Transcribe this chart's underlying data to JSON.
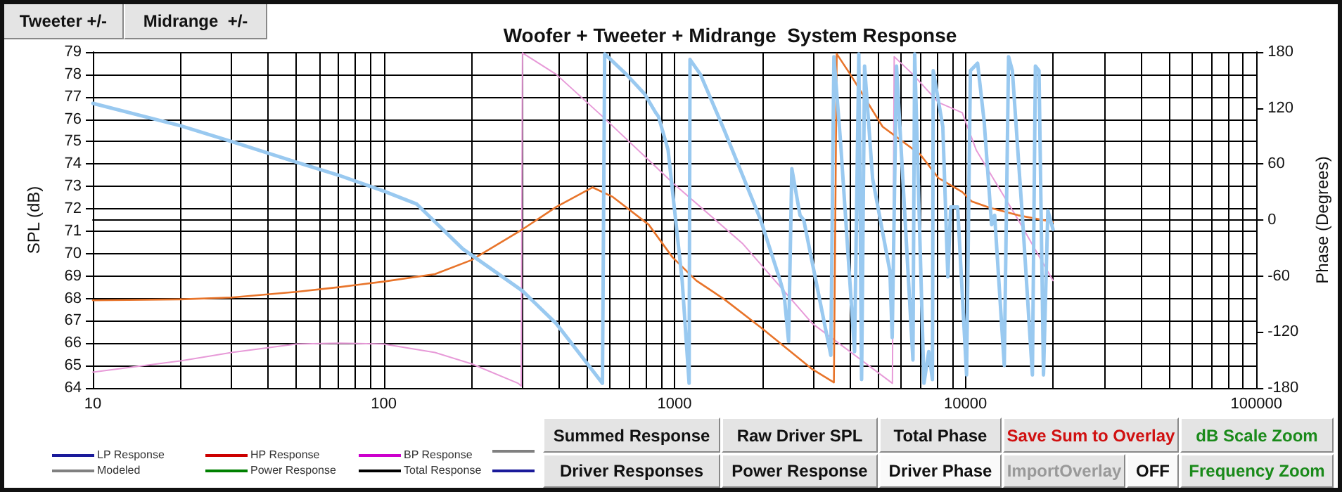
{
  "chart_data": {
    "type": "line",
    "title": "Woofer + Tweeter + Midrange  System Response",
    "ylabel": "SPL (dB)",
    "y2label": "Phase (Degrees)",
    "xlim": [
      10,
      100000
    ],
    "log": "x",
    "xticks": [
      10,
      {
        "value": 20,
        "label": null
      },
      {
        "value": 30,
        "label": null
      },
      {
        "value": 40,
        "label": null
      },
      {
        "value": 50,
        "label": null
      },
      {
        "value": 60,
        "label": null
      },
      {
        "value": 70,
        "label": null
      },
      {
        "value": 80,
        "label": null
      },
      {
        "value": 90,
        "label": null
      },
      100,
      {
        "value": 200,
        "label": null
      },
      {
        "value": 300,
        "label": null
      },
      {
        "value": 400,
        "label": null
      },
      {
        "value": 500,
        "label": null
      },
      {
        "value": 600,
        "label": null
      },
      {
        "value": 700,
        "label": null
      },
      {
        "value": 800,
        "label": null
      },
      {
        "value": 900,
        "label": null
      },
      1000,
      {
        "value": 2000,
        "label": null
      },
      {
        "value": 3000,
        "label": null
      },
      {
        "value": 4000,
        "label": null
      },
      {
        "value": 5000,
        "label": null
      },
      {
        "value": 6000,
        "label": null
      },
      {
        "value": 7000,
        "label": null
      },
      {
        "value": 8000,
        "label": null
      },
      {
        "value": 9000,
        "label": null
      },
      10000,
      {
        "value": 20000,
        "label": null
      },
      {
        "value": 30000,
        "label": null
      },
      {
        "value": 40000,
        "label": null
      },
      {
        "value": 50000,
        "label": null
      },
      {
        "value": 60000,
        "label": null
      },
      {
        "value": 70000,
        "label": null
      },
      {
        "value": 80000,
        "label": null
      },
      {
        "value": 90000,
        "label": null
      },
      100000
    ],
    "ylim": [
      64,
      79
    ],
    "yticks": [
      64,
      65,
      66,
      67,
      68,
      69,
      70,
      71,
      72,
      73,
      74,
      75,
      76,
      77,
      78,
      79
    ],
    "y2lim": [
      -180,
      180
    ],
    "y2ticks": [
      -180,
      -120,
      -60,
      0,
      60,
      120,
      180
    ],
    "grid": true,
    "marker": "none",
    "line_style": "solid",
    "series": [
      {
        "color": "#99c9f0",
        "axis": "y2",
        "x": [
          10,
          20,
          30,
          50,
          70,
          100,
          130,
          187,
          300,
          392,
          565,
          575,
          683,
          789,
          861,
          880,
          950,
          1062,
          1122,
          1130,
          1227,
          1483,
          1977,
          2307,
          2380,
          2466,
          2530,
          2700,
          2780,
          3445,
          3530,
          3718,
          4157,
          4300,
          4395,
          4500,
          4797,
          5500,
          5600,
          5794,
          6600,
          6690,
          7200,
          7480,
          7700,
          7750,
          8360,
          8700,
          8900,
          9400,
          10090,
          10400,
          11010,
          11600,
          12300,
          12600,
          13600,
          14070,
          14500,
          15800,
          16990,
          17400,
          17900,
          18550,
          19200,
          20000
        ],
        "values": [
          125,
          101,
          84,
          62,
          48,
          31,
          17,
          -31,
          -76,
          -111,
          -175,
          178,
          156,
          135,
          115,
          111,
          75,
          -65,
          -175,
          172,
          156,
          96,
          0,
          -65,
          -80,
          -130,
          55,
          5,
          0,
          -145,
          175,
          85,
          -141,
          178,
          -171,
          165,
          44,
          -55,
          -126,
          165,
          -150,
          178,
          -175,
          -141,
          -171,
          160,
          100,
          -61,
          14,
          14,
          -166,
          160,
          168,
          105,
          -5,
          5,
          -156,
          175,
          160,
          -10,
          -166,
          165,
          160,
          -166,
          10,
          -10
        ]
      },
      {
        "color": "#e8742a",
        "axis": "y2",
        "x": [
          10,
          20,
          30,
          50,
          70,
          100,
          150,
          200,
          300,
          392,
          522,
          611,
          815,
          984,
          1189,
          1483,
          1977,
          2978,
          3530,
          3610,
          4020,
          5190,
          7000,
          8070,
          9750,
          10500,
          12160,
          15200,
          20000
        ],
        "values": [
          -86,
          -85,
          -83,
          -77,
          -72,
          -66,
          -58,
          -43,
          -10,
          14,
          35,
          25,
          -5,
          -40,
          -65,
          -85,
          -115,
          -160,
          -174,
          178,
          156,
          100,
          70,
          45,
          30,
          20,
          13,
          5,
          -2
        ]
      },
      {
        "color": "#e79ad8",
        "axis": "y2",
        "x": [
          10,
          20,
          30,
          50,
          70,
          100,
          150,
          200,
          290,
          297,
          300,
          392,
          565,
          984,
          1710,
          2978,
          5610,
          5690,
          6600,
          8070,
          9750,
          10890,
          13000,
          15200,
          20000
        ],
        "values": [
          -163,
          -151,
          -142,
          -133,
          -132,
          -133,
          -142,
          -154,
          -175,
          -178,
          179,
          156,
          111,
          40,
          -25,
          -111,
          -175,
          175,
          156,
          126,
          115,
          75,
          35,
          0,
          -65
        ]
      }
    ],
    "annotations": [
      "Tweeter +/-",
      "Midrange  +/-",
      "Summed Response",
      "Raw Driver SPL",
      "Total Phase",
      "Save Sum to Overlay",
      "dB Scale Zoom",
      "Driver Responses",
      "Power Response",
      "Driver Phase",
      "ImportOverlay",
      "OFF",
      "Frequency Zoom",
      "LP Response",
      "HP Response",
      "BP Response",
      "Modeled",
      "Power Response",
      "Total Response"
    ]
  }
}
